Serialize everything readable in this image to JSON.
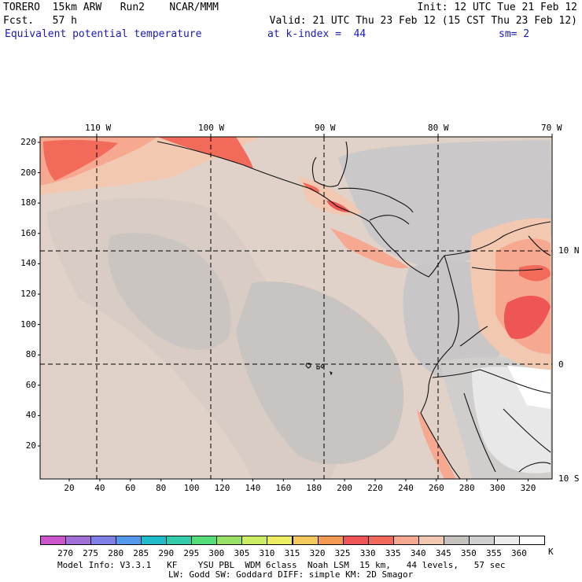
{
  "header": {
    "line1_left": "TORERO  15km ARW   Run2    NCAR/MMM",
    "line1_right": "Init: 12 UTC Tue 21 Feb 12",
    "line2_left": "Fcst.   57 h",
    "line2_right": "Valid: 21 UTC Thu 23 Feb 12 (15 CST Thu 23 Feb 12)",
    "line3_field": "Equivalent potential temperature",
    "line3_index": "at k-index =  44",
    "line3_sm": "sm= 2"
  },
  "map": {
    "lon_labels": [
      "110 W",
      "100 W",
      "90 W",
      "80 W",
      "70 W"
    ],
    "lat_labels": [
      "10 N",
      "0",
      "10 S"
    ],
    "y_ticks": [
      "220",
      "200",
      "180",
      "160",
      "140",
      "120",
      "100",
      "80",
      "60",
      "40",
      "20"
    ],
    "x_ticks": [
      "20",
      "40",
      "60",
      "80",
      "100",
      "120",
      "140",
      "160",
      "180",
      "200",
      "220",
      "240",
      "260",
      "280",
      "300",
      "320"
    ]
  },
  "colorbar": {
    "labels": [
      "270",
      "275",
      "280",
      "285",
      "290",
      "295",
      "300",
      "305",
      "310",
      "315",
      "320",
      "325",
      "330",
      "335",
      "340",
      "345",
      "350",
      "355",
      "360"
    ],
    "unit": "K",
    "colors": [
      "#cc55cc",
      "#a070d8",
      "#7f7fe8",
      "#5599ee",
      "#22bbcc",
      "#33ccaa",
      "#55dd77",
      "#99e066",
      "#ccee66",
      "#eeee66",
      "#f6c860",
      "#f49a55",
      "#f05555",
      "#f26a5a",
      "#f6a890",
      "#f2c8b0",
      "#c6c2be",
      "#d0d0d0",
      "#ececec",
      "#ffffff"
    ]
  },
  "footer": {
    "line1": "Model Info: V3.3.1   KF    YSU PBL  WDM 6class  Noah LSM  15 km,   44 levels,   57 sec",
    "line2": "LW: Godd SW: Goddard DIFF: simple KM: 2D Smagor"
  }
}
